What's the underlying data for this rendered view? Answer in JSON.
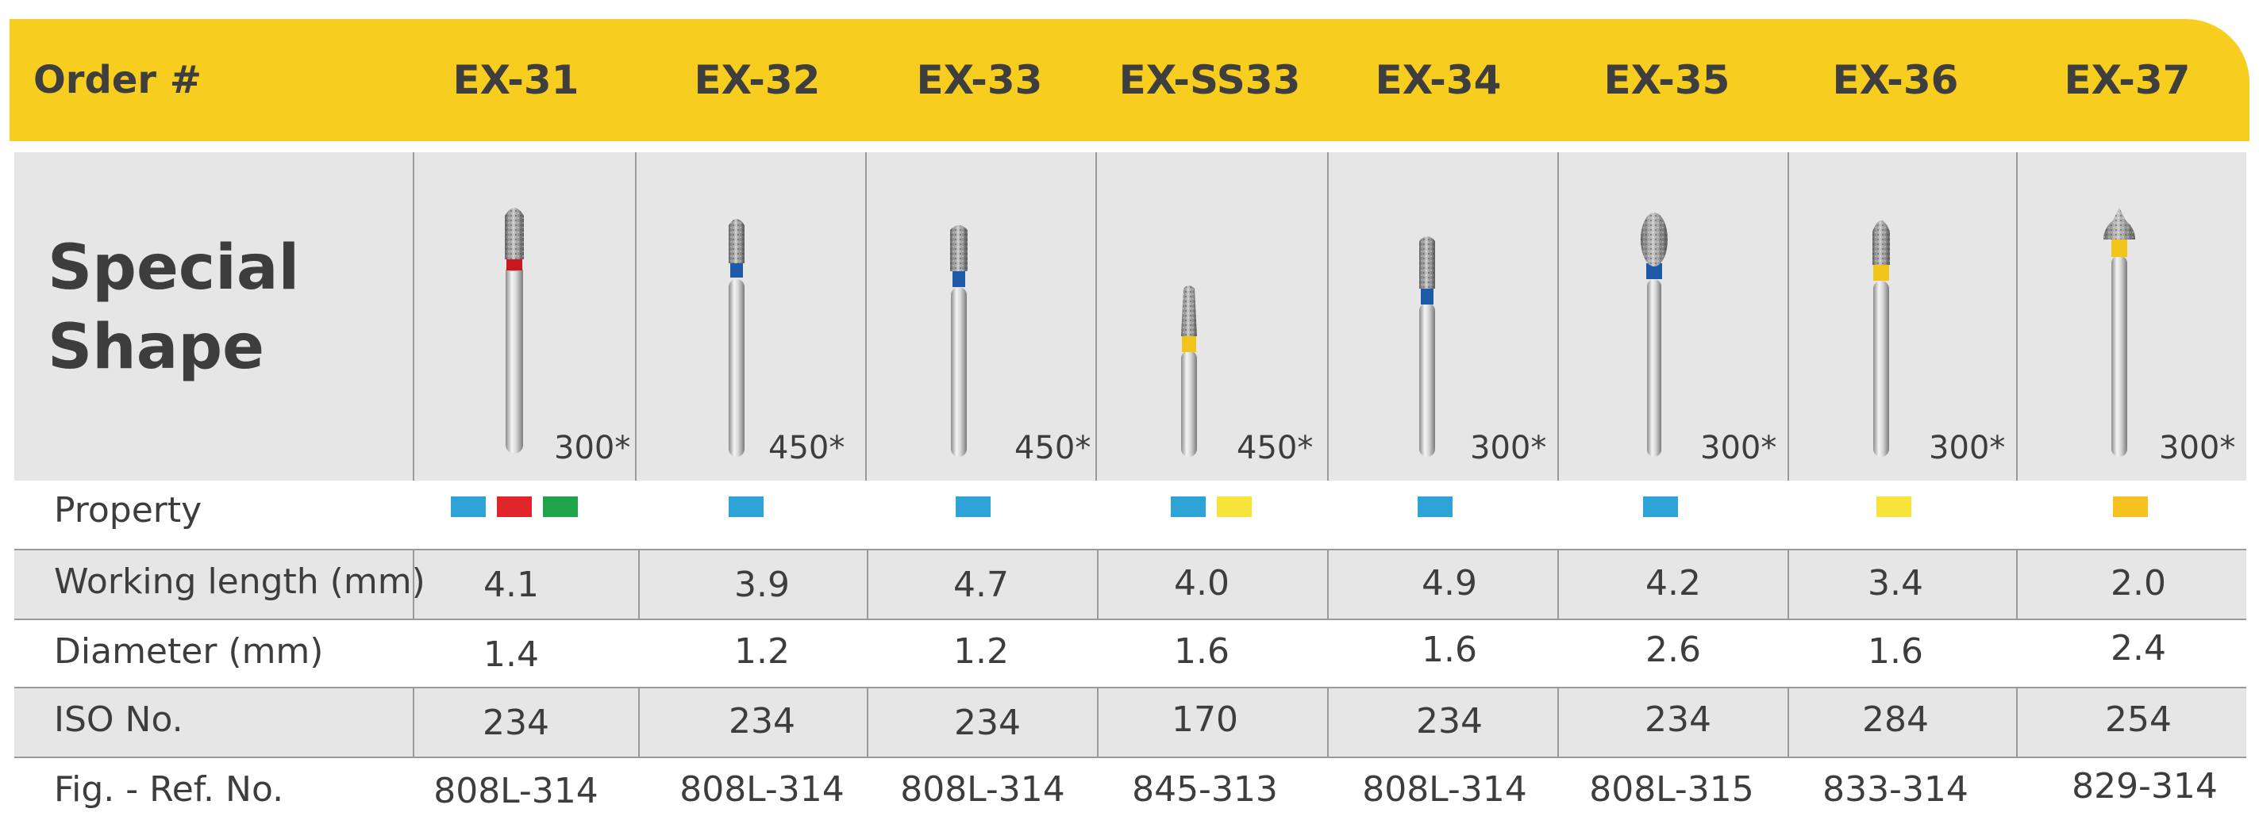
{
  "header": {
    "order_label": "Order #",
    "codes": [
      "EX-31",
      "EX-32",
      "EX-33",
      "EX-SS33",
      "EX-34",
      "EX-35",
      "EX-36",
      "EX-37"
    ]
  },
  "shape_label_line1": "Special",
  "shape_label_line2": "Shape",
  "rpm": [
    "300*",
    "450*",
    "450*",
    "450*",
    "300*",
    "300*",
    "300*",
    "300*"
  ],
  "rows": {
    "property_label": "Property",
    "working_length_label": "Working length (mm)",
    "working_length": [
      "4.1",
      "3.9",
      "4.7",
      "4.0",
      "4.9",
      "4.2",
      "3.4",
      "2.0"
    ],
    "diameter_label": "Diameter (mm)",
    "diameter": [
      "1.4",
      "1.2",
      "1.2",
      "1.6",
      "1.6",
      "2.6",
      "1.6",
      "2.4"
    ],
    "iso_label": "ISO No.",
    "iso": [
      "234",
      "234",
      "234",
      "170",
      "234",
      "234",
      "284",
      "254"
    ],
    "ref_label": "Fig. - Ref. No.",
    "ref": [
      "808L-314",
      "808L-314",
      "808L-314",
      "845-313",
      "808L-314",
      "808L-315",
      "833-314",
      "829-314"
    ]
  },
  "property_colors": [
    [
      "#2ea3d6",
      "#e0262b",
      "#1fa44b"
    ],
    [
      "#2ea3d6"
    ],
    [
      "#2ea3d6"
    ],
    [
      "#2ea3d6",
      "#f7e33a"
    ],
    [
      "#2ea3d6"
    ],
    [
      "#2ea3d6"
    ],
    [
      "#f7e33a"
    ],
    [
      "#f7c21f"
    ]
  ],
  "band_colors": [
    "#c8171e",
    "#1f5aa8",
    "#1f5aa8",
    "#f2c51c",
    "#1f5aa8",
    "#1f5aa8",
    "#f2c51c",
    "#f2c51c"
  ],
  "colors": {
    "header_bg": "#f7cd1f",
    "row_shade": "#e6e6e6"
  }
}
